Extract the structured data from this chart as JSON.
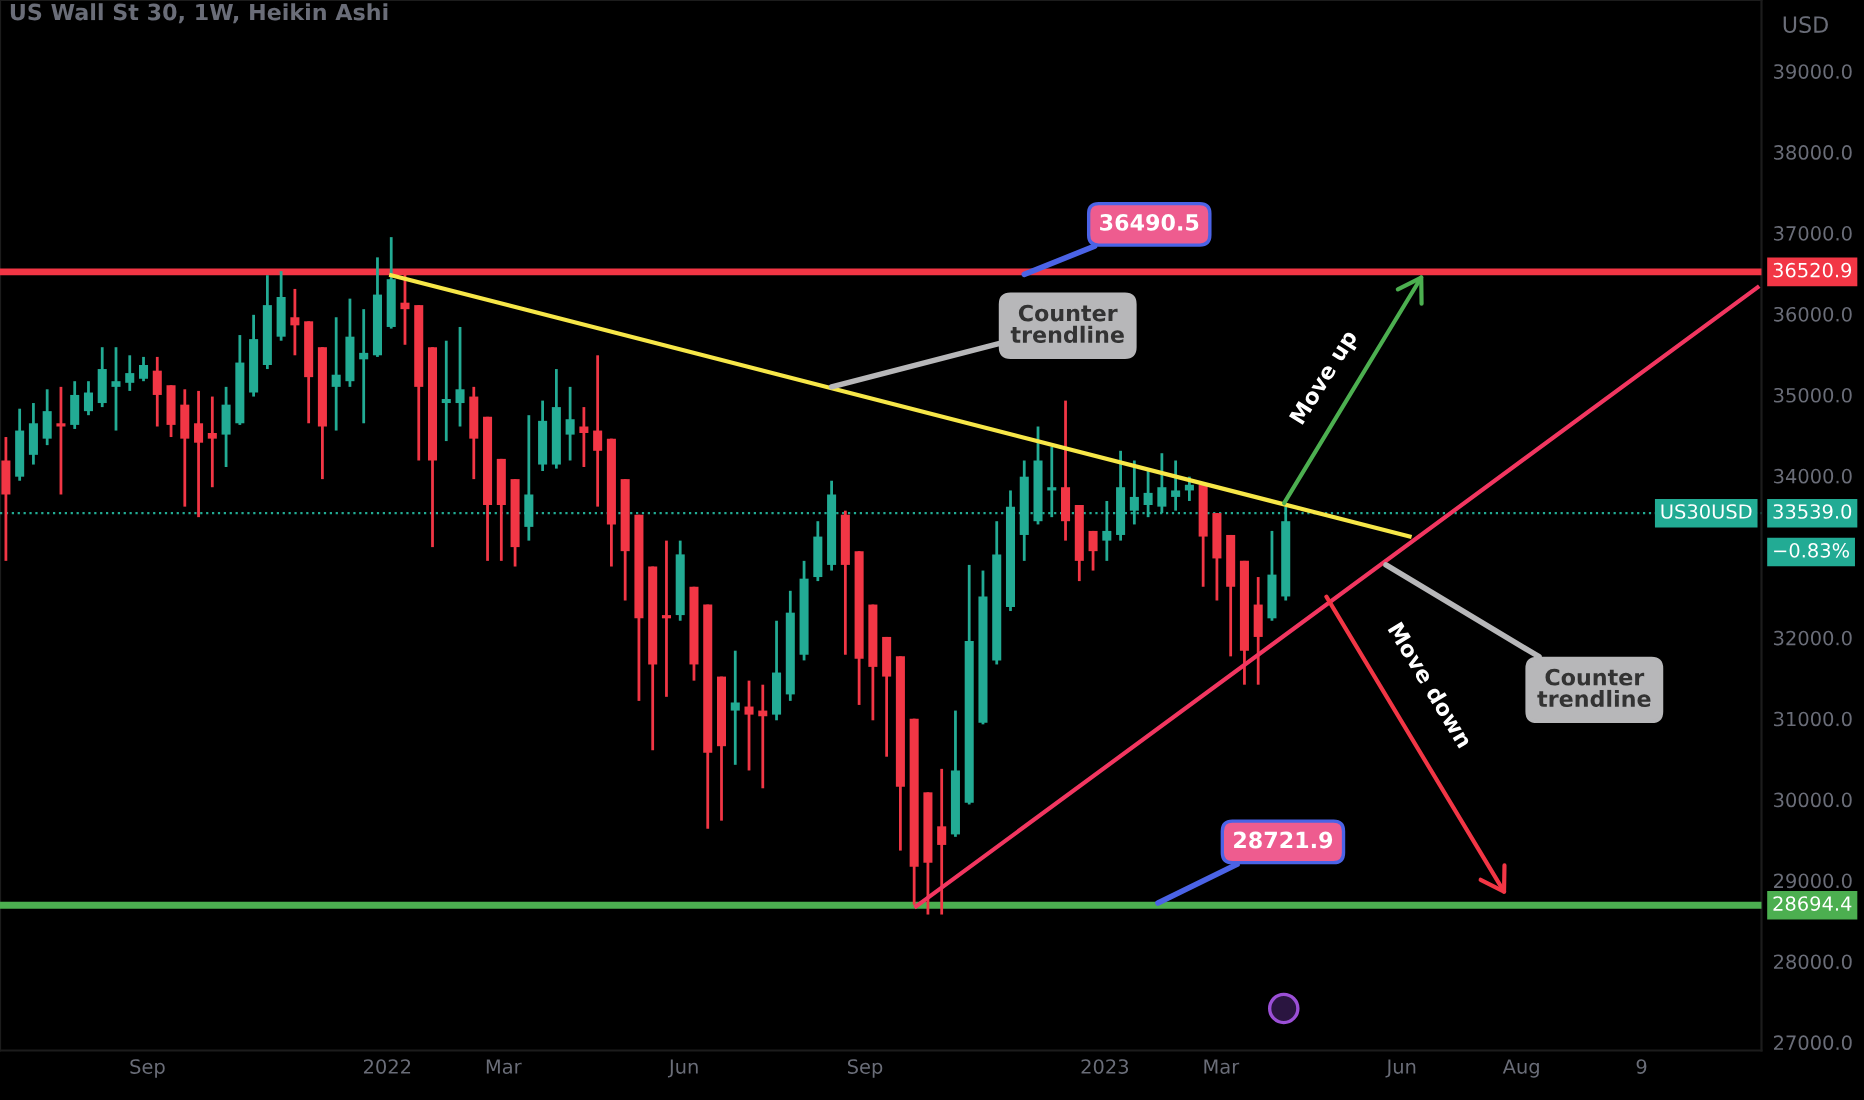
{
  "chart_data": {
    "type": "candlestick",
    "title": "US Wall St 30, 1W, Heikin Ashi",
    "ylabel": "USD",
    "x": [
      "2021-06-21",
      "2021-06-28",
      "2021-07-05",
      "2021-07-12",
      "2021-07-19",
      "2021-07-26",
      "2021-08-02",
      "2021-08-09",
      "2021-08-16",
      "2021-08-23",
      "2021-08-30",
      "2021-09-06",
      "2021-09-13",
      "2021-09-20",
      "2021-09-27",
      "2021-10-04",
      "2021-10-11",
      "2021-10-18",
      "2021-10-25",
      "2021-11-01",
      "2021-11-08",
      "2021-11-15",
      "2021-11-22",
      "2021-11-29",
      "2021-12-06",
      "2021-12-13",
      "2021-12-20",
      "2021-12-27",
      "2022-01-03",
      "2022-01-10",
      "2022-01-17",
      "2022-01-24",
      "2022-01-31",
      "2022-02-07",
      "2022-02-14",
      "2022-02-21",
      "2022-02-28",
      "2022-03-07",
      "2022-03-14",
      "2022-03-21",
      "2022-03-28",
      "2022-04-04",
      "2022-04-11",
      "2022-04-18",
      "2022-04-25",
      "2022-05-02",
      "2022-05-09",
      "2022-05-16",
      "2022-05-23",
      "2022-05-30",
      "2022-06-06",
      "2022-06-13",
      "2022-06-20",
      "2022-06-27",
      "2022-07-04",
      "2022-07-11",
      "2022-07-18",
      "2022-07-25",
      "2022-08-01",
      "2022-08-08",
      "2022-08-15",
      "2022-08-22",
      "2022-08-29",
      "2022-09-05",
      "2022-09-12",
      "2022-09-19",
      "2022-09-26",
      "2022-10-03",
      "2022-10-10",
      "2022-10-17",
      "2022-10-24",
      "2022-10-31",
      "2022-11-07",
      "2022-11-14",
      "2022-11-21",
      "2022-11-28",
      "2022-12-05",
      "2022-12-12",
      "2022-12-19",
      "2022-12-26",
      "2023-01-02",
      "2023-01-09",
      "2023-01-16",
      "2023-01-23",
      "2023-01-30",
      "2023-02-06",
      "2023-02-13",
      "2023-02-20",
      "2023-02-27",
      "2023-03-06",
      "2023-03-13",
      "2023-03-20",
      "2023-03-27",
      "2023-04-03"
    ],
    "ohlc": [
      [
        34190,
        34480,
        32950,
        33770
      ],
      [
        33990,
        34830,
        33940,
        34560
      ],
      [
        34260,
        34900,
        34140,
        34650
      ],
      [
        34460,
        35070,
        34380,
        34800
      ],
      [
        34650,
        35100,
        33770,
        34610
      ],
      [
        34630,
        35170,
        34580,
        35000
      ],
      [
        34800,
        35170,
        34750,
        35030
      ],
      [
        34900,
        35590,
        34850,
        35320
      ],
      [
        35100,
        35590,
        34560,
        35170
      ],
      [
        35150,
        35490,
        35050,
        35270
      ],
      [
        35200,
        35470,
        35170,
        35370
      ],
      [
        35300,
        35470,
        34610,
        35000
      ],
      [
        35120,
        35120,
        34480,
        34630
      ],
      [
        34880,
        35070,
        33620,
        34460
      ],
      [
        34650,
        35050,
        33490,
        34410
      ],
      [
        34530,
        34980,
        33860,
        34460
      ],
      [
        34510,
        35100,
        34110,
        34880
      ],
      [
        34650,
        35740,
        34630,
        35400
      ],
      [
        35030,
        35990,
        34980,
        35690
      ],
      [
        35370,
        36480,
        35320,
        36110
      ],
      [
        35720,
        36530,
        35670,
        36210
      ],
      [
        35960,
        36310,
        35490,
        35860
      ],
      [
        35910,
        35910,
        34650,
        35220
      ],
      [
        35590,
        35590,
        33960,
        34610
      ],
      [
        35100,
        35960,
        34560,
        35250
      ],
      [
        35170,
        36190,
        35100,
        35720
      ],
      [
        35440,
        36060,
        34650,
        35520
      ],
      [
        35490,
        36700,
        35470,
        36240
      ],
      [
        35840,
        36950,
        35820,
        36430
      ],
      [
        36140,
        36510,
        35620,
        36060
      ],
      [
        36110,
        36110,
        34190,
        35100
      ],
      [
        35590,
        35590,
        33120,
        34190
      ],
      [
        34900,
        35670,
        34430,
        34950
      ],
      [
        34900,
        35840,
        34610,
        35070
      ],
      [
        34980,
        35100,
        33960,
        34460
      ],
      [
        34730,
        34730,
        32950,
        33640
      ],
      [
        34210,
        34210,
        32950,
        33640
      ],
      [
        33960,
        33960,
        32880,
        33120
      ],
      [
        33370,
        34750,
        33200,
        33770
      ],
      [
        34140,
        34930,
        34060,
        34680
      ],
      [
        34140,
        35320,
        34090,
        34850
      ],
      [
        34510,
        35100,
        34190,
        34700
      ],
      [
        34610,
        34850,
        34110,
        34530
      ],
      [
        34560,
        35490,
        33620,
        34310
      ],
      [
        34460,
        34460,
        32880,
        33400
      ],
      [
        33960,
        33960,
        32460,
        33070
      ],
      [
        33520,
        33520,
        31220,
        32240
      ],
      [
        32880,
        32880,
        30610,
        31670
      ],
      [
        32280,
        33200,
        31270,
        32240
      ],
      [
        32280,
        33200,
        32210,
        33030
      ],
      [
        32630,
        32630,
        31470,
        31670
      ],
      [
        32410,
        32410,
        29640,
        30580
      ],
      [
        31520,
        31520,
        29740,
        30660
      ],
      [
        31100,
        31840,
        30430,
        31200
      ],
      [
        31150,
        31470,
        30360,
        31050
      ],
      [
        31100,
        31420,
        30140,
        31030
      ],
      [
        31050,
        32210,
        30980,
        31570
      ],
      [
        31300,
        32580,
        31220,
        32310
      ],
      [
        31790,
        32950,
        31720,
        32730
      ],
      [
        32750,
        33440,
        32700,
        33250
      ],
      [
        32900,
        33940,
        32830,
        33770
      ],
      [
        33520,
        33570,
        31790,
        32900
      ],
      [
        33070,
        33070,
        31170,
        31740
      ],
      [
        32410,
        32410,
        30980,
        31640
      ],
      [
        32010,
        32010,
        30530,
        31520
      ],
      [
        31770,
        31770,
        29370,
        30160
      ],
      [
        31000,
        31000,
        28700,
        29170
      ],
      [
        30090,
        30090,
        28580,
        29220
      ],
      [
        29670,
        30380,
        28580,
        29440
      ],
      [
        29570,
        31100,
        29540,
        30360
      ],
      [
        29960,
        32900,
        29940,
        31960
      ],
      [
        30950,
        32830,
        30930,
        32510
      ],
      [
        31720,
        33440,
        31670,
        33030
      ],
      [
        32380,
        33820,
        32330,
        33620
      ],
      [
        33270,
        34190,
        32950,
        33990
      ],
      [
        33440,
        34610,
        33400,
        34190
      ],
      [
        33820,
        34360,
        33490,
        33860
      ],
      [
        33860,
        34930,
        33200,
        33440
      ],
      [
        33640,
        33640,
        32700,
        32950
      ],
      [
        33320,
        33320,
        32830,
        33070
      ],
      [
        33200,
        33690,
        32950,
        33320
      ],
      [
        33270,
        34310,
        33200,
        33860
      ],
      [
        33570,
        34190,
        33400,
        33740
      ],
      [
        33640,
        34060,
        33490,
        33790
      ],
      [
        33620,
        34280,
        33540,
        33860
      ],
      [
        33740,
        34190,
        33570,
        33820
      ],
      [
        33820,
        33990,
        33690,
        33890
      ],
      [
        33890,
        33890,
        32630,
        33250
      ],
      [
        33540,
        33540,
        32460,
        32980
      ],
      [
        33270,
        33270,
        31770,
        32630
      ],
      [
        32950,
        32950,
        31420,
        31840
      ],
      [
        32410,
        32750,
        31420,
        32010
      ],
      [
        32240,
        33320,
        32210,
        32780
      ],
      [
        32510,
        33620,
        32460,
        33440
      ]
    ],
    "colors": [
      "#f23645",
      "#22ab94",
      "#22ab94",
      "#22ab94",
      "#f23645",
      "#22ab94",
      "#22ab94",
      "#22ab94",
      "#22ab94",
      "#22ab94",
      "#22ab94",
      "#f23645",
      "#f23645",
      "#f23645",
      "#f23645",
      "#f23645",
      "#22ab94",
      "#22ab94",
      "#22ab94",
      "#22ab94",
      "#22ab94",
      "#f23645",
      "#f23645",
      "#f23645",
      "#22ab94",
      "#22ab94",
      "#22ab94",
      "#22ab94",
      "#22ab94",
      "#f23645",
      "#f23645",
      "#f23645",
      "#22ab94",
      "#22ab94",
      "#f23645",
      "#f23645",
      "#f23645",
      "#f23645",
      "#22ab94",
      "#22ab94",
      "#22ab94",
      "#22ab94",
      "#f23645",
      "#f23645",
      "#f23645",
      "#f23645",
      "#f23645",
      "#f23645",
      "#f23645",
      "#22ab94",
      "#f23645",
      "#f23645",
      "#f23645",
      "#22ab94",
      "#f23645",
      "#f23645",
      "#22ab94",
      "#22ab94",
      "#22ab94",
      "#22ab94",
      "#22ab94",
      "#f23645",
      "#f23645",
      "#f23645",
      "#f23645",
      "#f23645",
      "#f23645",
      "#f23645",
      "#f23645",
      "#22ab94",
      "#22ab94",
      "#22ab94",
      "#22ab94",
      "#22ab94",
      "#22ab94",
      "#22ab94",
      "#22ab94",
      "#f23645",
      "#f23645",
      "#f23645",
      "#22ab94",
      "#22ab94",
      "#22ab94",
      "#22ab94",
      "#22ab94",
      "#22ab94",
      "#22ab94",
      "#f23645",
      "#f23645",
      "#f23645",
      "#f23645",
      "#f23645",
      "#22ab94",
      "#22ab94"
    ],
    "series": [
      {
        "type": "line",
        "color": "#f7e748",
        "x": [
          "2022-01-03",
          "2023-06-05"
        ],
        "values": [
          36480,
          33250
        ]
      },
      {
        "type": "line",
        "color": "#f23660",
        "x": [
          "2022-09-27",
          "2023-11-29"
        ],
        "values": [
          28680,
          36330
        ]
      }
    ],
    "xlim": [
      "2021-06-18",
      "2023-12-01"
    ],
    "xticks": [
      {
        "value": "2021-09-01",
        "label": "Sep"
      },
      {
        "value": "2022-01-01",
        "label": "2022"
      },
      {
        "value": "2022-03-01",
        "label": "Mar"
      },
      {
        "value": "2022-06-01",
        "label": "Jun"
      },
      {
        "value": "2022-09-01",
        "label": "Sep"
      },
      {
        "value": "2023-01-01",
        "label": "2023"
      },
      {
        "value": "2023-03-01",
        "label": "Mar"
      },
      {
        "value": "2023-06-01",
        "label": "Jun"
      },
      {
        "value": "2023-08-01",
        "label": "Aug"
      },
      {
        "value": "2023-10-01",
        "label": "9"
      }
    ],
    "ylim": [
      26900,
      39880
    ],
    "yticks": [
      {
        "value": 27000,
        "label": "27000.0"
      },
      {
        "value": 28000,
        "label": "28000.0"
      },
      {
        "value": 29000,
        "label": "29000.0"
      },
      {
        "value": 30000,
        "label": "30000.0"
      },
      {
        "value": 31000,
        "label": "31000.0"
      },
      {
        "value": 32000,
        "label": "32000.0"
      },
      {
        "value": 34000,
        "label": "34000.0"
      },
      {
        "value": 35000,
        "label": "35000.0"
      },
      {
        "value": 36000,
        "label": "36000.0"
      },
      {
        "value": 37000,
        "label": "37000.0"
      },
      {
        "value": 38000,
        "label": "38000.0"
      },
      {
        "value": 39000,
        "label": "39000.0"
      }
    ],
    "ref_lines": [
      {
        "axis": "y",
        "value": 36520.9,
        "label": "36520.9",
        "color": "#f23645",
        "line_style": "solid"
      },
      {
        "axis": "y",
        "value": 28694.4,
        "label": "28694.4",
        "color": "#4caf50",
        "line_style": "solid"
      },
      {
        "axis": "y",
        "value": 33539.0,
        "label": "33539.0",
        "color": "#22ab94",
        "line_style": "dotted"
      }
    ],
    "annotations": [
      {
        "text": "36490.5",
        "x": "2022-11-21",
        "y": 36490.5
      },
      {
        "text": "28721.9",
        "x": "2023-01-28",
        "y": 28721.9
      },
      {
        "text": "Counter\ntrendline",
        "x": "2022-08-15",
        "y": 35100
      },
      {
        "text": "Counter\ntrendline",
        "x": "2023-05-24",
        "y": 32900
      },
      "Move up",
      "Move down",
      "US30USD",
      "−0.83%"
    ],
    "grid": false,
    "legend": false,
    "marker": "none",
    "line_style": "solid"
  }
}
